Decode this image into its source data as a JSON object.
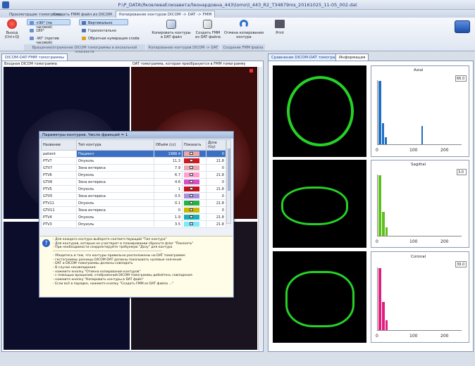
{
  "window": {
    "title": "P:\\P_DATA\\ЯковлеваЕлизаветаЛеонардовна_443\\tomo\\t_443_R2_T34879ms_20161025_11-05_002.dat"
  },
  "tabs": [
    {
      "label": "Просмотрщик томограмм"
    },
    {
      "label": "Создать FMM файл из DICOM"
    },
    {
      "label": "Копирование контуров DICOM -> DAT -> FMM"
    }
  ],
  "ribbon": {
    "exit_label": "Выход (Ctrl+Q)",
    "rotate_cw": "+90° (по часовой)",
    "rotate_180": "180°",
    "rotate_ccw": "-90° (против часовой)",
    "vertical": "Вертикально",
    "horizontal": "Горизонтально",
    "reverse_layers": "Обратная нумерация слоёв",
    "copy_contours": "Копировать контуры в DAT файл",
    "create_fmm": "Создать FMM из DAT файла",
    "cancel_copy": "Отмена копирования контура",
    "print": "Print",
    "group1": "Вращение/отражение DICOM томограммы в аксиальной плоскости",
    "group2": "Копирование контуров DICOM -> DAT",
    "group3": "Создание FMM файла"
  },
  "left_panel": {
    "tab": "DICOM-DAT-FMM томограммы",
    "caption_left": "Входная DICOM томограмма",
    "caption_right": "DAT томограмма, которая преобразуется в FMM томограмму"
  },
  "right_panel": {
    "tab1": "Сравнение DICOM-DAT томограмм",
    "tab2": "Информация",
    "histograms": [
      {
        "title": "Axial",
        "value": "66.0",
        "ticks": [
          "0",
          "100",
          "200"
        ]
      },
      {
        "title": "Sagittal",
        "value": "3.0",
        "ticks": [
          "0",
          "100",
          "200"
        ]
      },
      {
        "title": "Coronal",
        "value": "39.0",
        "ticks": [
          "0",
          "100",
          "200"
        ]
      }
    ]
  },
  "dialog": {
    "title": "Параметры контуров. Число фракций = 1",
    "columns": [
      "Название",
      "Тип контура",
      "Объём (cc)",
      "Показать",
      "Доза (Gy)"
    ],
    "rows": [
      {
        "name": "patient",
        "type": "Пациент",
        "vol": "1988.4",
        "color": "#e8a8a8",
        "dose": "0"
      },
      {
        "name": "PTV7",
        "type": "Опухоль",
        "vol": "11.3",
        "color": "#d4181c",
        "dose": "21.8"
      },
      {
        "name": "GTV7",
        "type": "Зона интереса",
        "vol": "7.9",
        "color": "#e8a8b0",
        "dose": "0"
      },
      {
        "name": "PTV6",
        "type": "Опухоль",
        "vol": "6.7",
        "color": "#ff9ecf",
        "dose": "21.8"
      },
      {
        "name": "GTV6",
        "type": "Зона интереса",
        "vol": "4.6",
        "color": "#d94fc8",
        "dose": "0"
      },
      {
        "name": "PTV5",
        "type": "Опухоль",
        "vol": "1",
        "color": "#c4121a",
        "dose": "21.8"
      },
      {
        "name": "GTV5",
        "type": "Зона интереса",
        "vol": "0.5",
        "color": "#a88fe0",
        "dose": "0"
      },
      {
        "name": "PTV11",
        "type": "Опухоль",
        "vol": "0.1",
        "color": "#26b24a",
        "dose": "21.8"
      },
      {
        "name": "GTV11",
        "type": "Зона интереса",
        "vol": "0",
        "color": "#c9b800",
        "dose": "0"
      },
      {
        "name": "PTV4",
        "type": "Опухоль",
        "vol": "1.9",
        "color": "#18b0b8",
        "dose": "21.8"
      },
      {
        "name": "PTV3",
        "type": "Опухоль",
        "vol": "3.5",
        "color": "#7de8f8",
        "dose": "21.8"
      }
    ],
    "hints": [
      "- Для каждого контура выберете соответствующий \"Тип контура\"",
      "- Для контуров, которые не участвуют в планировании сбросьте флаг \"Показать\"",
      "- При необходимости скорректируйте требуемую \"Дозу\" для контура",
      "---------------------------------------------------------------------------------------------",
      "- Убедитесь в том, что контуры правильно расположены на DAT томограмме:",
      "    - гистограммы разницы DICOM-DAT должны показывать нулевые значения",
      "    - DAT и DICOM томограммы должны совпадать",
      "- В случае несовпадения:",
      "    - нажмите кнопку \"Отмена копирования контуров\"",
      "    - с помощью вращений, отображений DICOM томограммы добейтесь совпадения",
      "    - нажмите кнопку \"Копировать контуры в DAT файл\"",
      "- Если всё в порядке, нажмите кнопку \"Создать FMM из DAT файла ...\""
    ]
  },
  "colors": {
    "accent": "#1f3f8f",
    "selection": "#3b6fc4",
    "ct_green": "#26d126",
    "axial": "#1f6fc4",
    "sagittal": "#5fbf1f",
    "coronal": "#e0207f"
  }
}
